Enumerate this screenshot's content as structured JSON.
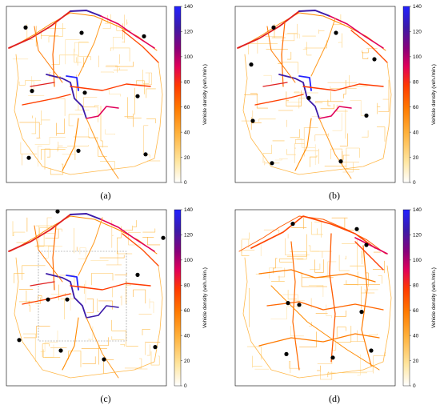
{
  "colorbar": {
    "label": "Vehicle density (veh./min.)",
    "ticks": [
      "0",
      "20",
      "40",
      "60",
      "80",
      "100",
      "120",
      "140"
    ],
    "stops": [
      "#ffffff",
      "#ffe6a0",
      "#ffb13b",
      "#ff7a00",
      "#ff3a00",
      "#e0005a",
      "#8a007a",
      "#3c1aa8",
      "#2222ff"
    ]
  },
  "panels": [
    {
      "caption": "(a)",
      "nodes": [
        [
          0.12,
          0.12
        ],
        [
          0.47,
          0.15
        ],
        [
          0.86,
          0.17
        ],
        [
          0.16,
          0.48
        ],
        [
          0.49,
          0.49
        ],
        [
          0.82,
          0.51
        ],
        [
          0.14,
          0.86
        ],
        [
          0.45,
          0.82
        ],
        [
          0.87,
          0.84
        ]
      ],
      "box": false
    },
    {
      "caption": "(b)",
      "nodes": [
        [
          0.24,
          0.12
        ],
        [
          0.63,
          0.15
        ],
        [
          0.87,
          0.3
        ],
        [
          0.1,
          0.33
        ],
        [
          0.46,
          0.52
        ],
        [
          0.82,
          0.62
        ],
        [
          0.11,
          0.65
        ],
        [
          0.23,
          0.89
        ],
        [
          0.66,
          0.88
        ]
      ],
      "box": false
    },
    {
      "caption": "(c)",
      "nodes": [
        [
          0.32,
          0.01
        ],
        [
          0.98,
          0.16
        ],
        [
          0.82,
          0.37
        ],
        [
          0.26,
          0.51
        ],
        [
          0.38,
          0.51
        ],
        [
          0.08,
          0.74
        ],
        [
          0.34,
          0.8
        ],
        [
          0.61,
          0.85
        ],
        [
          0.93,
          0.78
        ]
      ],
      "box": true
    },
    {
      "caption": "(d)",
      "nodes": [
        [
          0.36,
          0.08
        ],
        [
          0.76,
          0.11
        ],
        [
          0.82,
          0.2
        ],
        [
          0.33,
          0.53
        ],
        [
          0.4,
          0.54
        ],
        [
          0.79,
          0.58
        ],
        [
          0.32,
          0.82
        ],
        [
          0.61,
          0.84
        ],
        [
          0.85,
          0.8
        ]
      ],
      "box": false
    }
  ]
}
